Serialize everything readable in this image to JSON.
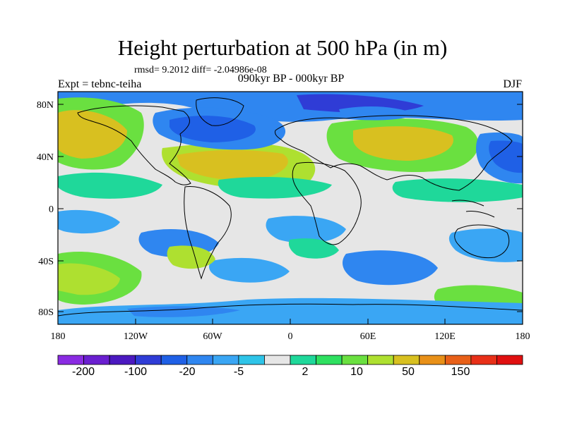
{
  "title": "Height perturbation at 500 hPa (in m)",
  "stats": "rmsd= 9.2012 diff= -2.04986e-08",
  "subtitle": "090kyr BP - 000kyr BP",
  "left_label": "Expt = tebnc-teiha",
  "right_label": "DJF",
  "lat_labels": [
    "80N",
    "40N",
    "0",
    "40S",
    "80S"
  ],
  "lon_labels": [
    "180",
    "120W",
    "60W",
    "0",
    "60E",
    "120E",
    "180"
  ],
  "colorbar": {
    "colors": [
      "#8a2be2",
      "#6a1fd0",
      "#4b19c0",
      "#2f3cd6",
      "#1f60e6",
      "#2f86f0",
      "#3aa6f4",
      "#2ec4e8",
      "#e6e6e6",
      "#1fd89a",
      "#2ee060",
      "#6ae040",
      "#aee030",
      "#d8c020",
      "#e89018",
      "#e86018",
      "#e83018",
      "#e01010"
    ],
    "labels": [
      "-200",
      "-100",
      "-20",
      "-5",
      "2",
      "10",
      "50",
      "150"
    ]
  }
}
